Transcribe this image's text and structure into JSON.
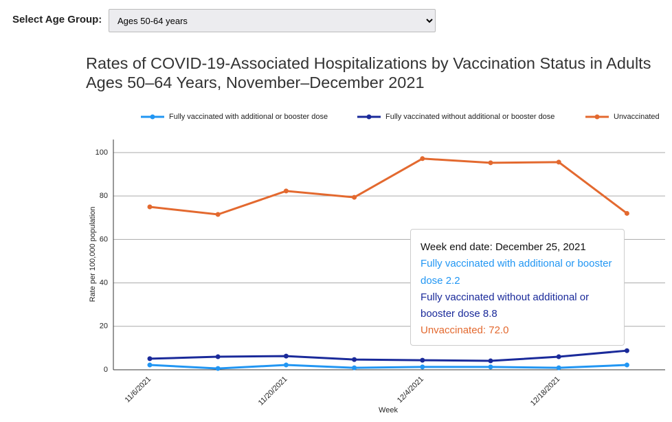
{
  "controls": {
    "label": "Select Age Group:",
    "selected": "Ages 50-64 years"
  },
  "chart_data": {
    "type": "line",
    "title": "Rates of COVID-19-Associated Hospitalizations by Vaccination Status in Adults Ages 50–64 Years, November–December 2021",
    "x_label": "Week",
    "y_label": "Rate per 100,000 population",
    "categories": [
      "11/6/2021",
      null,
      "11/20/2021",
      null,
      "12/4/2021",
      null,
      "12/18/2021",
      null
    ],
    "series": [
      {
        "name": "Fully vaccinated with additional or booster dose",
        "color": "#2196f3",
        "values": [
          2.2,
          0.6,
          2.2,
          0.9,
          1.3,
          1.3,
          0.9,
          2.2
        ]
      },
      {
        "name": "Fully vaccinated without additional or booster dose",
        "color": "#1a2a9a",
        "values": [
          5.1,
          6.0,
          6.3,
          4.7,
          4.4,
          4.1,
          6.0,
          8.8
        ]
      },
      {
        "name": "Unvaccinated",
        "color": "#e3692f",
        "values": [
          75.0,
          71.5,
          82.3,
          79.4,
          97.2,
          95.3,
          95.6,
          72.0
        ]
      }
    ],
    "ylim": [
      0,
      106
    ],
    "yticks": [
      0,
      20,
      40,
      60,
      80,
      100
    ],
    "grid": true,
    "tooltip": {
      "title": "Week end date: December 25, 2021",
      "items": [
        "Fully vaccinated with additional or booster dose 2.2",
        "Fully vaccinated without additional or booster dose 8.8",
        "Unvaccinated: 72.0"
      ]
    }
  }
}
